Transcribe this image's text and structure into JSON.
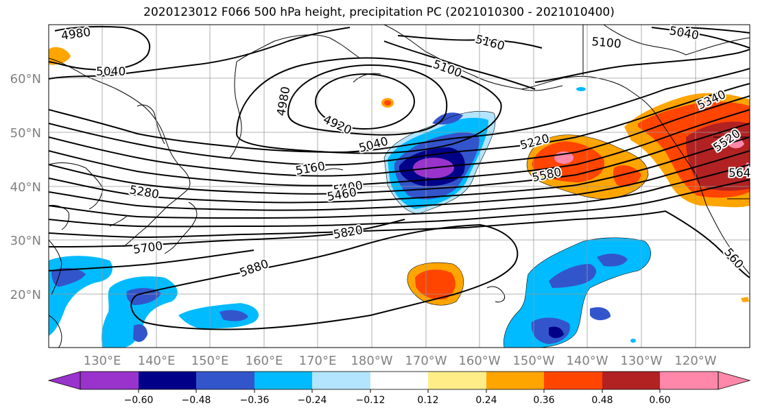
{
  "title": "2020123012 F066 500 hPa height, precipitation PC (2021010300 - 2021010400)",
  "lat_labels": [
    "60°N",
    "50°N",
    "40°N",
    "30°N",
    "20°N"
  ],
  "lon_labels": [
    "130°E",
    "140°E",
    "150°E",
    "160°E",
    "170°E",
    "180°W",
    "170°W",
    "160°W",
    "150°W",
    "140°W",
    "130°W",
    "120°W"
  ],
  "contour_labels": [
    {
      "text": "4980"
    },
    {
      "text": "5040"
    },
    {
      "text": "4980"
    },
    {
      "text": "4920"
    },
    {
      "text": "5160"
    },
    {
      "text": "5100"
    },
    {
      "text": "5100"
    },
    {
      "text": "5040"
    },
    {
      "text": "5040"
    },
    {
      "text": "5160"
    },
    {
      "text": "5220"
    },
    {
      "text": "5280"
    },
    {
      "text": "5400"
    },
    {
      "text": "5460"
    },
    {
      "text": "5580"
    },
    {
      "text": "5340"
    },
    {
      "text": "5520"
    },
    {
      "text": "564"
    },
    {
      "text": "5820"
    },
    {
      "text": "5700"
    },
    {
      "text": "5880"
    },
    {
      "text": "560"
    }
  ],
  "colorbar": {
    "ticks": [
      "−0.60",
      "−0.48",
      "−0.36",
      "−0.24",
      "−0.12",
      "0.12",
      "0.24",
      "0.36",
      "0.48",
      "0.60"
    ],
    "colors": [
      "#9933cc",
      "#000088",
      "#3355cc",
      "#00bbff",
      "#b3e5ff",
      "#ffffff",
      "#ffee88",
      "#ffa500",
      "#ff4500",
      "#b22222",
      "#ff88aa"
    ]
  },
  "colors": {
    "neg1": "#9933cc",
    "neg2": "#000088",
    "neg3": "#3355cc",
    "neg4": "#00bbff",
    "neg5": "#b3e5ff",
    "pos1": "#ffee88",
    "pos2": "#ffa500",
    "pos3": "#ff4500",
    "pos4": "#b22222",
    "pos5": "#ff88aa",
    "axis_label": "#808080"
  }
}
